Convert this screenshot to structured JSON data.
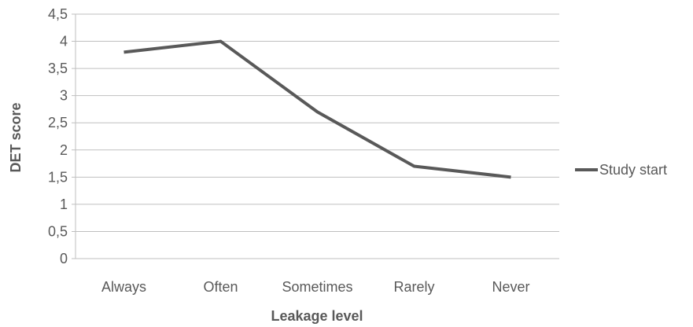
{
  "chart_data": {
    "type": "line",
    "categories": [
      "Always",
      "Often",
      "Sometimes",
      "Rarely",
      "Never"
    ],
    "series": [
      {
        "name": "Study start",
        "values": [
          3.8,
          4.0,
          2.7,
          1.7,
          1.5
        ],
        "color": "#595959"
      }
    ],
    "xlabel": "Leakage level",
    "ylabel": "DET score",
    "ylim": [
      0,
      4.5
    ],
    "yticks": [
      "0",
      "0,5",
      "1",
      "1,5",
      "2",
      "2,5",
      "3",
      "3,5",
      "4",
      "4,5"
    ],
    "grid": true,
    "legend": "right",
    "colors": {
      "grid": "#bfbfbf",
      "text": "#595959"
    }
  }
}
